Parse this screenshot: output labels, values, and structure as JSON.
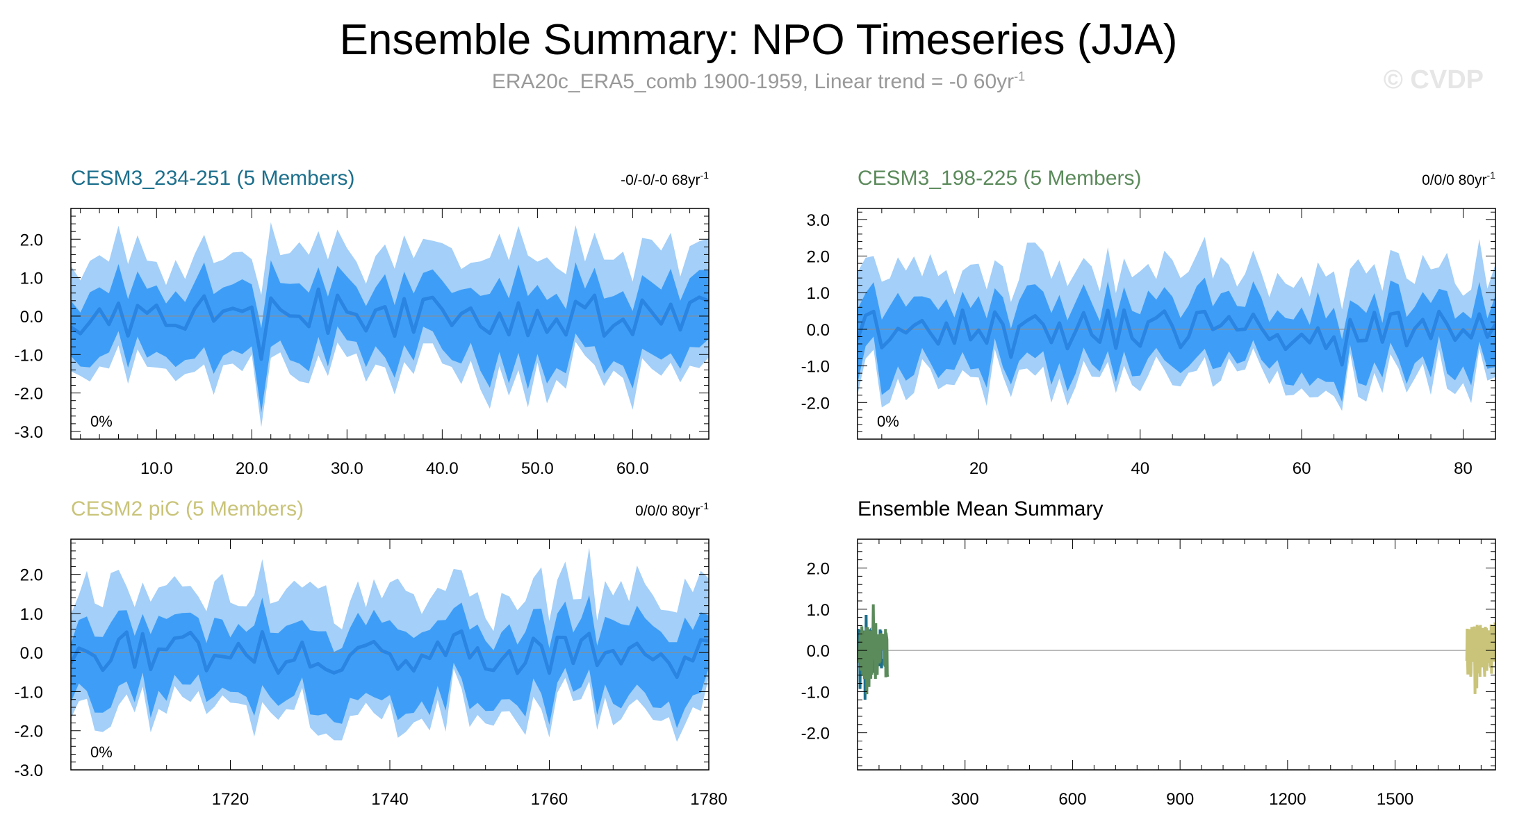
{
  "title": "Ensemble Summary: NPO Timeseries (JJA)",
  "subtitle_main": "ERA20c_ERA5_comb 1900-1959, Linear trend = -0 60yr",
  "subtitle_sup": "-1",
  "watermark": "© CVDP",
  "colors": {
    "band_outer": "#a3cff8",
    "band_inner": "#3e9ef7",
    "mean_line": "#2a84e2",
    "zero_line": "#8c8c8c",
    "model1": "#1c6f8c",
    "model2": "#5b8a5b",
    "model3": "#c9c47a"
  },
  "chart_data": [
    {
      "type": "area",
      "title": "CESM3_234-251 (5 Members)",
      "title_color": "#1c6f8c",
      "trend": "-0/-0/-0 68yr",
      "trend_sup": "-1",
      "annotation": "0%",
      "xlim": [
        1,
        68
      ],
      "ylim": [
        -3.2,
        2.8
      ],
      "xticks": [
        10,
        20,
        30,
        40,
        50,
        60
      ],
      "xtick_labels": [
        "10.0",
        "20.0",
        "30.0",
        "40.0",
        "50.0",
        "60.0"
      ],
      "yticks": [
        -3,
        -2,
        -1,
        0,
        1,
        2
      ],
      "ytick_labels": [
        "-3.0",
        "-2.0",
        "-1.0",
        "0.0",
        "1.0",
        "2.0"
      ],
      "x_start": 1,
      "x_step": 1,
      "seed": 11,
      "n": 68,
      "spread": 1.2
    },
    {
      "type": "area",
      "title": "CESM3_198-225 (5 Members)",
      "title_color": "#5b8a5b",
      "trend": "0/0/0 80yr",
      "trend_sup": "-1",
      "annotation": "0%",
      "xlim": [
        5,
        84
      ],
      "ylim": [
        -3.0,
        3.3
      ],
      "xticks": [
        20,
        40,
        60,
        80
      ],
      "xtick_labels": [
        "20",
        "40",
        "60",
        "80"
      ],
      "yticks": [
        -2,
        -1,
        0,
        1,
        2,
        3
      ],
      "ytick_labels": [
        "-2.0",
        "-1.0",
        "0.0",
        "1.0",
        "2.0",
        "3.0"
      ],
      "x_start": 5,
      "x_step": 1,
      "seed": 29,
      "n": 80,
      "spread": 1.15
    },
    {
      "type": "area",
      "title": "CESM2 piC (5 Members)",
      "title_color": "#c9c47a",
      "trend": "0/0/0 80yr",
      "trend_sup": "-1",
      "annotation": "0%",
      "xlim": [
        1700,
        1780
      ],
      "ylim": [
        -3.0,
        2.9
      ],
      "xticks": [
        1720,
        1740,
        1760,
        1780
      ],
      "xtick_labels": [
        "1720",
        "1740",
        "1760",
        "1780"
      ],
      "yticks": [
        -3,
        -2,
        -1,
        0,
        1,
        2
      ],
      "ytick_labels": [
        "-3.0",
        "-2.0",
        "-1.0",
        "0.0",
        "1.0",
        "2.0"
      ],
      "x_start": 1700,
      "x_step": 1,
      "seed": 47,
      "n": 81,
      "spread": 1.2
    },
    {
      "type": "line",
      "title": "Ensemble Mean Summary",
      "title_color": "#000000",
      "xlim": [
        0,
        1780
      ],
      "ylim": [
        -2.9,
        2.7
      ],
      "xticks": [
        300,
        600,
        900,
        1200,
        1500
      ],
      "xtick_labels": [
        "300",
        "600",
        "900",
        "1200",
        "1500"
      ],
      "yticks": [
        -2,
        -1,
        0,
        1,
        2
      ],
      "ytick_labels": [
        "-2.0",
        "-1.0",
        "0.0",
        "1.0",
        "2.0"
      ],
      "series": [
        {
          "name": "CESM3_234-251",
          "color": "#1c6f8c",
          "x_start": 1,
          "n": 68,
          "seed": 101,
          "amp": 0.55
        },
        {
          "name": "CESM3_198-225",
          "color": "#5b8a5b",
          "x_start": 5,
          "n": 80,
          "seed": 131,
          "amp": 0.7
        },
        {
          "name": "CESM2 piC",
          "color": "#c9c47a",
          "x_start": 1700,
          "n": 81,
          "seed": 171,
          "amp": 0.65
        }
      ]
    }
  ]
}
